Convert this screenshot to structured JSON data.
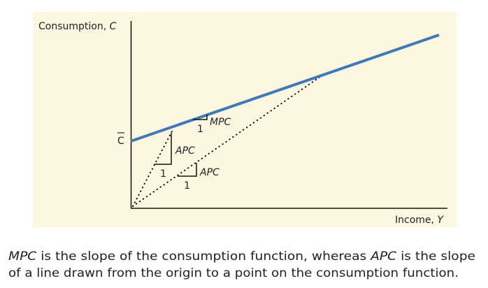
{
  "axes": {
    "y_label": {
      "text": "Consumption,",
      "variable": "C"
    },
    "x_label": {
      "text": "Income,",
      "variable": "Y"
    },
    "intercept_label": "C"
  },
  "annotations": {
    "mpc": {
      "label": "MPC",
      "run": "1"
    },
    "apc_steep": {
      "label": "APC",
      "run": "1"
    },
    "apc_shallow": {
      "label": "APC",
      "run": "1"
    }
  },
  "caption": {
    "lines": [
      [
        {
          "text": "MPC",
          "italic": true
        },
        {
          "text": " is the slope of the consumption function, whereas ",
          "italic": false
        },
        {
          "text": "APC",
          "italic": true
        },
        {
          "text": " is the slope",
          "italic": false
        }
      ],
      [
        {
          "text": "of a line drawn from the origin to a point on the consumption function.",
          "italic": false
        }
      ]
    ]
  }
}
